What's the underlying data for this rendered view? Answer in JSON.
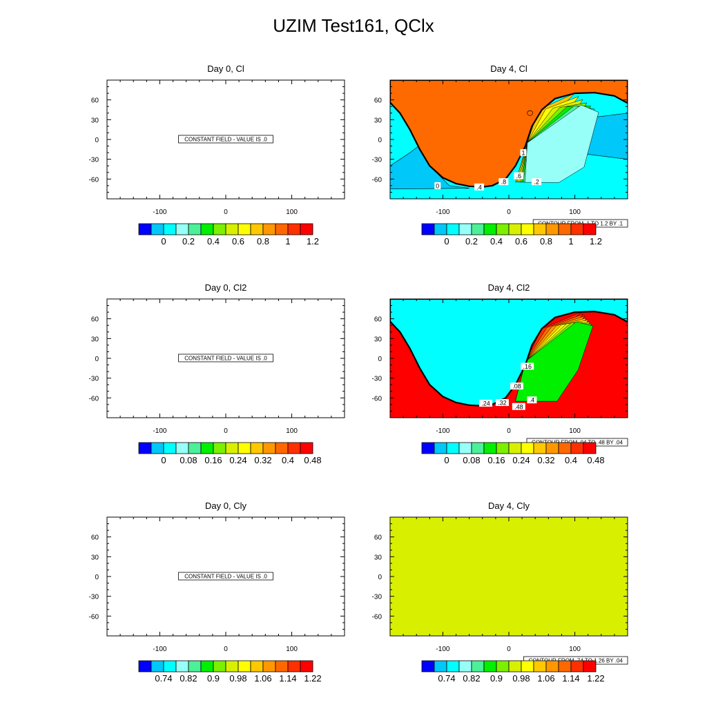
{
  "figure_title": "UZIM Test161, QClx",
  "colors": {
    "palette": [
      "#0000ff",
      "#00c8f8",
      "#00ffff",
      "#98fff8",
      "#4cf098",
      "#00f000",
      "#7cf000",
      "#d8f000",
      "#ffff00",
      "#ffc800",
      "#ff9800",
      "#ff6800",
      "#ff3000",
      "#ff0000"
    ],
    "cl_day4_fill": "#ff6a00",
    "cl2_day4_fill": "#00ffff",
    "cl2_day4_right_fill": "#ff0000",
    "cly_day4_fill": "#d8f000"
  },
  "chart_data": [
    {
      "type": "heatmap",
      "title": "Day 0, Cl",
      "xticks": [
        -100,
        0,
        100
      ],
      "yticks": [
        60,
        30,
        0,
        -30,
        -60
      ],
      "xlim": [
        -180,
        180
      ],
      "ylim": [
        -90,
        90
      ],
      "annotation": "CONSTANT FIELD - VALUE IS .0",
      "colorbar_labels": [
        "0",
        "0.2",
        "0.4",
        "0.6",
        "0.8",
        "1",
        "1.2"
      ]
    },
    {
      "type": "heatmap",
      "title": "Day 4, Cl",
      "xticks": [
        -100,
        0,
        100
      ],
      "yticks": [
        60,
        30,
        0,
        -30,
        -60
      ],
      "xlim": [
        -180,
        180
      ],
      "ylim": [
        -90,
        90
      ],
      "annotation": "CONTOUR FROM .1 TO 1.2 BY .1",
      "contour_labels": [
        "0",
        ".4",
        ".8",
        ".6",
        "1",
        ".2"
      ],
      "colorbar_labels": [
        "0",
        "0.2",
        "0.4",
        "0.6",
        "0.8",
        "1",
        "1.2"
      ]
    },
    {
      "type": "heatmap",
      "title": "Day 0, Cl2",
      "xticks": [
        -100,
        0,
        100
      ],
      "yticks": [
        60,
        30,
        0,
        -30,
        -60
      ],
      "xlim": [
        -180,
        180
      ],
      "ylim": [
        -90,
        90
      ],
      "annotation": "CONSTANT FIELD - VALUE IS .0",
      "colorbar_labels": [
        "0",
        "0.08",
        "0.16",
        "0.24",
        "0.32",
        "0.4",
        "0.48"
      ]
    },
    {
      "type": "heatmap",
      "title": "Day 4, Cl2",
      "xticks": [
        -100,
        0,
        100
      ],
      "yticks": [
        60,
        30,
        0,
        -30,
        -60
      ],
      "xlim": [
        -180,
        180
      ],
      "ylim": [
        -90,
        90
      ],
      "annotation": "CONTOUR FROM .04 TO .48 BY .04",
      "contour_labels": [
        ".16",
        ".08",
        ".24",
        ".32",
        ".48",
        ".4"
      ],
      "colorbar_labels": [
        "0",
        "0.08",
        "0.16",
        "0.24",
        "0.32",
        "0.4",
        "0.48"
      ]
    },
    {
      "type": "heatmap",
      "title": "Day 0, Cly",
      "xticks": [
        -100,
        0,
        100
      ],
      "yticks": [
        60,
        30,
        0,
        -30,
        -60
      ],
      "xlim": [
        -180,
        180
      ],
      "ylim": [
        -90,
        90
      ],
      "annotation": "CONSTANT FIELD - VALUE IS .0",
      "colorbar_labels": [
        "0.74",
        "0.82",
        "0.9",
        "0.98",
        "1.06",
        "1.14",
        "1.22"
      ]
    },
    {
      "type": "heatmap",
      "title": "Day 4, Cly",
      "xticks": [
        -100,
        0,
        100
      ],
      "yticks": [
        60,
        30,
        0,
        -30,
        -60
      ],
      "xlim": [
        -180,
        180
      ],
      "ylim": [
        -90,
        90
      ],
      "annotation": "CONTOUR FROM .74 TO 1.26 BY .04",
      "colorbar_labels": [
        "0.74",
        "0.82",
        "0.9",
        "0.98",
        "1.06",
        "1.14",
        "1.22"
      ]
    }
  ]
}
